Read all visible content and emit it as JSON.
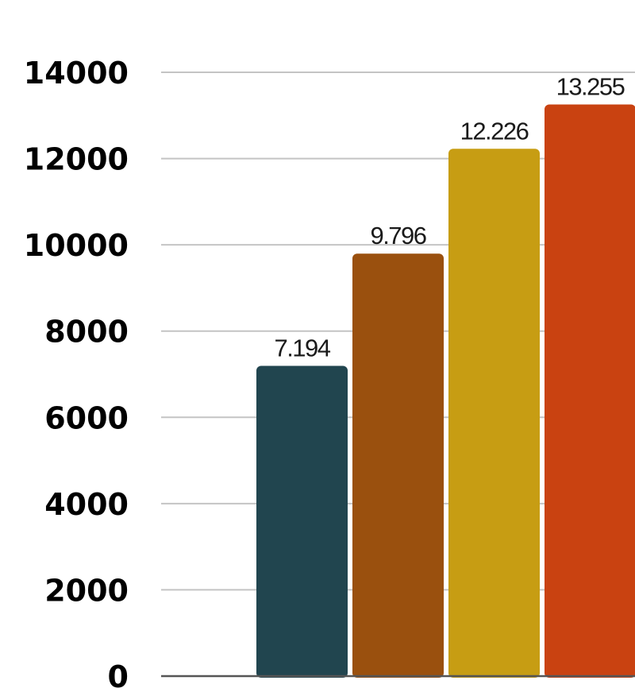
{
  "chart_data": {
    "type": "bar",
    "categories": [
      "",
      "",
      "",
      ""
    ],
    "values": [
      7194,
      9796,
      12226,
      13255
    ],
    "data_labels": [
      "7.194",
      "9.796",
      "12.226",
      "13.255"
    ],
    "colors": [
      "#21454F",
      "#9A500E",
      "#C79D13",
      "#C94211"
    ],
    "ylim": [
      0,
      14000
    ],
    "yticks": [
      0,
      2000,
      4000,
      6000,
      8000,
      10000,
      12000,
      14000
    ],
    "ytick_labels": [
      "0",
      "2000",
      "4000",
      "6000",
      "8000",
      "10000",
      "12000",
      "14000"
    ],
    "grid": true,
    "legend": "none",
    "title": "",
    "xlabel": "",
    "ylabel": ""
  }
}
